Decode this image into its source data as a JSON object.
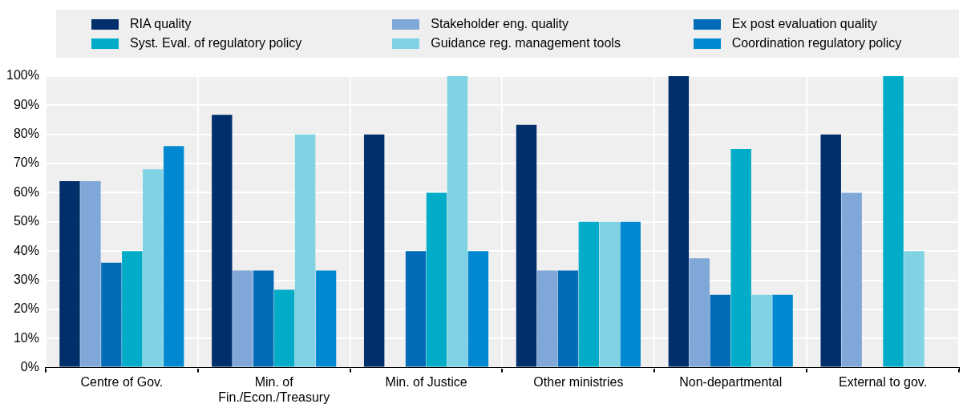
{
  "chart_data": {
    "type": "bar",
    "categories": [
      "Centre of Gov.",
      "Min. of\nFin./Econ./Treasury",
      "Min. of Justice",
      "Other ministries",
      "Non-departmental",
      "External to gov."
    ],
    "series": [
      {
        "name": "RIA quality",
        "color": "#002f6c",
        "values": [
          64,
          86.7,
          80,
          83.3,
          100,
          80
        ]
      },
      {
        "name": "Stakeholder eng. quality",
        "color": "#7fa8d9",
        "values": [
          64,
          33.3,
          0,
          33.3,
          37.5,
          60
        ]
      },
      {
        "name": "Ex post evaluation quality",
        "color": "#006bb6",
        "values": [
          36,
          33.3,
          40,
          33.3,
          25,
          0
        ]
      },
      {
        "name": "Syst. Eval. of regulatory policy",
        "color": "#00acc8",
        "values": [
          40,
          26.7,
          60,
          50,
          75,
          100
        ]
      },
      {
        "name": "Guidance reg. management tools",
        "color": "#7fd3e4",
        "values": [
          68,
          80,
          100,
          50,
          25,
          40
        ]
      },
      {
        "name": "Coordination regulatory policy",
        "color": "#0089d0",
        "values": [
          76,
          33.3,
          40,
          50,
          25,
          0
        ]
      }
    ],
    "ylim": [
      0,
      100
    ],
    "yticks": [
      {
        "value": 0,
        "label": "0%"
      },
      {
        "value": 10,
        "label": "10%"
      },
      {
        "value": 20,
        "label": "20%"
      },
      {
        "value": 30,
        "label": "30%"
      },
      {
        "value": 40,
        "label": "40%"
      },
      {
        "value": 50,
        "label": "50%"
      },
      {
        "value": 60,
        "label": "60%"
      },
      {
        "value": 70,
        "label": "70%"
      },
      {
        "value": 80,
        "label": "80%"
      },
      {
        "value": 90,
        "label": "90%"
      },
      {
        "value": 100,
        "label": "100%"
      }
    ],
    "grid": true,
    "legend": "top"
  }
}
